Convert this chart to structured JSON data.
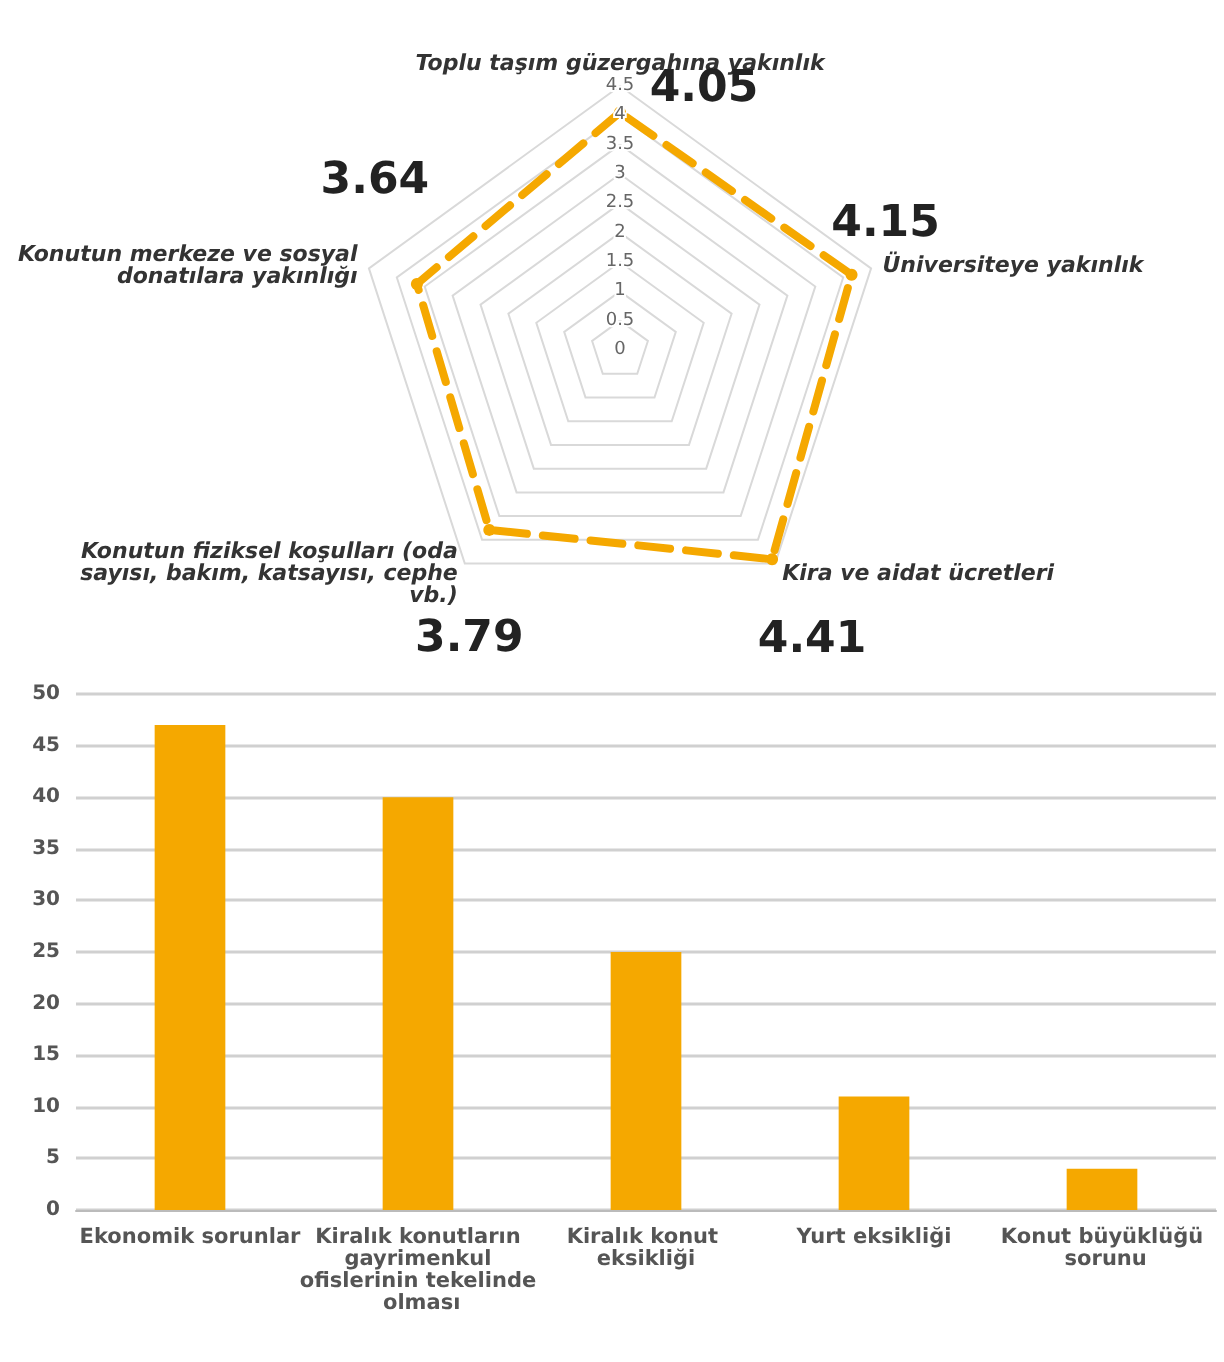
{
  "chart_data": [
    {
      "type": "radar",
      "categories": [
        "Toplu taşım güzergahına yakınlık",
        "Üniversiteye yakınlık",
        "Kira ve aidat ücretleri",
        "Konutun fiziksel koşulları (oda sayısı, bakım, katsayısı, cephe vb.)",
        "Konutun merkeze ve sosyal donatılara yakınlığı"
      ],
      "series": [
        {
          "color": "#f5a800",
          "values": [
            4.05,
            4.15,
            4.41,
            3.79,
            3.64
          ]
        }
      ],
      "ylim": [
        0,
        4.5
      ],
      "yticks": [
        0,
        0.5,
        1,
        1.5,
        2,
        2.5,
        3,
        3.5,
        4,
        4.5
      ],
      "data_labels": true,
      "marker": "circle",
      "line_style": "dashed",
      "grid": true
    },
    {
      "type": "bar",
      "categories": [
        "Ekonomik sorunlar",
        "Kiralık konutların gayrimenkul ofislerinin tekelinde olması",
        "Kiralık konut eksikliği",
        "Yurt eksikliği",
        "Konut büyüklüğü sorunu"
      ],
      "values": [
        47,
        40,
        25,
        11,
        4
      ],
      "color": "#f5a800",
      "ylim": [
        0,
        50
      ],
      "yticks": [
        0,
        5,
        10,
        15,
        20,
        25,
        30,
        35,
        40,
        45,
        50
      ],
      "grid": "y"
    }
  ]
}
